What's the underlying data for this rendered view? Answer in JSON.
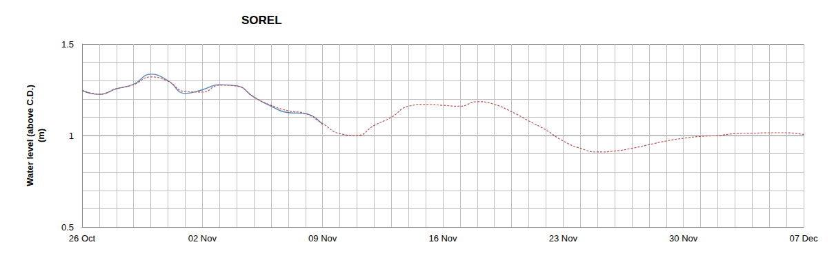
{
  "chart_data": {
    "type": "line",
    "title": "SOREL",
    "y_label": "Water level (above C.D.)\n(m)",
    "categories": [
      "26 Oct",
      null,
      null,
      null,
      null,
      null,
      null,
      "02 Nov",
      null,
      null,
      null,
      null,
      null,
      null,
      "09 Nov",
      null,
      null,
      null,
      null,
      null,
      null,
      "16 Nov",
      null,
      null,
      null,
      null,
      null,
      null,
      "23 Nov",
      null,
      null,
      null,
      null,
      null,
      null,
      "30 Nov",
      null,
      null,
      null,
      null,
      null,
      null,
      "07 Dec"
    ],
    "series": [
      {
        "color": "#4f81bd",
        "line_style": "solid",
        "values": [
          1.245,
          1.225,
          1.255,
          1.28,
          1.335,
          1.3,
          1.23,
          1.25,
          1.278,
          1.272,
          1.21,
          1.16,
          1.125,
          1.12,
          1.06,
          null,
          null,
          null,
          null,
          null,
          null,
          null,
          null,
          null,
          null,
          null,
          null,
          null,
          null,
          null,
          null,
          null,
          null,
          null,
          null,
          null,
          null,
          null,
          null,
          null,
          null,
          null,
          null
        ]
      },
      {
        "color": "#c0504d",
        "line_style": "dashed",
        "values": [
          1.248,
          1.226,
          1.256,
          1.278,
          1.32,
          1.297,
          1.24,
          1.237,
          1.275,
          1.27,
          1.21,
          1.165,
          1.135,
          1.12,
          1.065,
          1.01,
          1.0,
          1.055,
          1.1,
          1.16,
          1.17,
          1.165,
          1.16,
          1.185,
          1.17,
          1.13,
          1.08,
          1.03,
          0.97,
          0.93,
          0.91,
          0.915,
          0.93,
          0.95,
          0.97,
          0.985,
          0.995,
          1.0,
          1.01,
          1.012,
          1.015,
          1.015,
          1.005
        ]
      }
    ],
    "ylim": [
      0.5,
      1.5
    ],
    "yticks": [
      0.5,
      1,
      1.5
    ],
    "grid": true
  }
}
